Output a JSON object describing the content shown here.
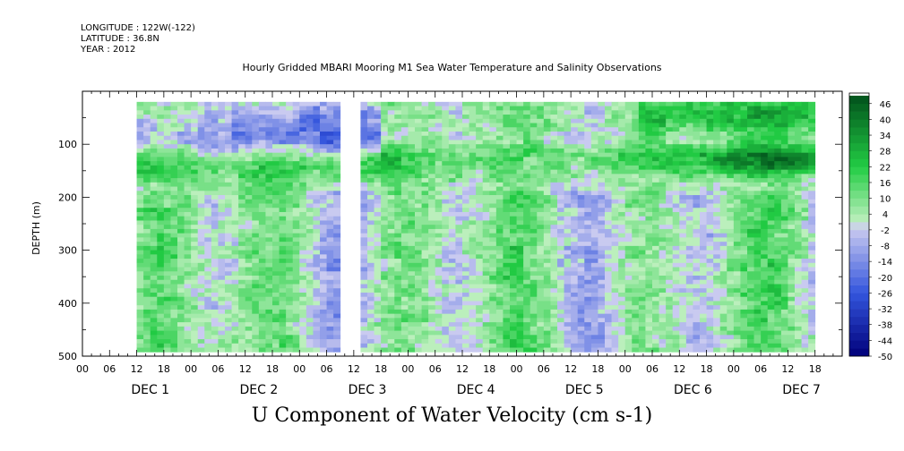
{
  "header": {
    "longitude": "LONGITUDE : 122W(-122)",
    "latitude": "LATITUDE : 36.8N",
    "year": "YEAR : 2012"
  },
  "plot_title": "Hourly Gridded MBARI Mooring M1 Sea Water Temperature and Salinity Observations",
  "bottom_title": "U Component of Water Velocity (cm s-1)",
  "chart_data": {
    "type": "heatmap",
    "title": "Hourly Gridded MBARI Mooring M1 Sea Water Temperature and Salinity Observations",
    "xlabel": "",
    "ylabel": "DEPTH (m)",
    "colorbar_label": "U Component of Water Velocity (cm s-1)",
    "x_hour_ticks": [
      "00",
      "06",
      "12",
      "18",
      "00",
      "06",
      "12",
      "18",
      "00",
      "06",
      "12",
      "18",
      "00",
      "06",
      "12",
      "18",
      "00",
      "06",
      "12",
      "18",
      "00",
      "06",
      "12",
      "18",
      "00",
      "06",
      "12",
      "18"
    ],
    "x_day_labels": [
      "DEC  1",
      "DEC  2",
      "DEC  3",
      "DEC  4",
      "DEC  5",
      "DEC  6",
      "DEC  7"
    ],
    "xlim_hours": [
      -12,
      156
    ],
    "data_x_range_hours": [
      0,
      150
    ],
    "y_ticks": [
      100,
      200,
      300,
      400,
      500
    ],
    "ylim_depth_m": [
      500,
      0
    ],
    "data_y_range_depth_m": [
      20,
      490
    ],
    "colorbar_labels": [
      "46",
      "40",
      "34",
      "28",
      "22",
      "16",
      "10",
      "4",
      "-2",
      "-8",
      "-14",
      "-20",
      "-26",
      "-32",
      "-38",
      "-44",
      "-50"
    ],
    "colorbar_range": [
      -50,
      50
    ],
    "colorbar_step": 3,
    "colors": {
      "strong_negative": "#00007a",
      "neg_mid": "#3355dd",
      "neutral_low": "#ccccf0",
      "neutral_high": "#bff0bf",
      "pos_mid": "#22cc44",
      "strong_positive": "#004d1a"
    },
    "jet_band": {
      "description_depths_m": [
        120,
        160
      ],
      "approx_value": 30
    },
    "upper_band_negative_before_hours": 48,
    "data_gap_hours": [
      45,
      49
    ]
  }
}
